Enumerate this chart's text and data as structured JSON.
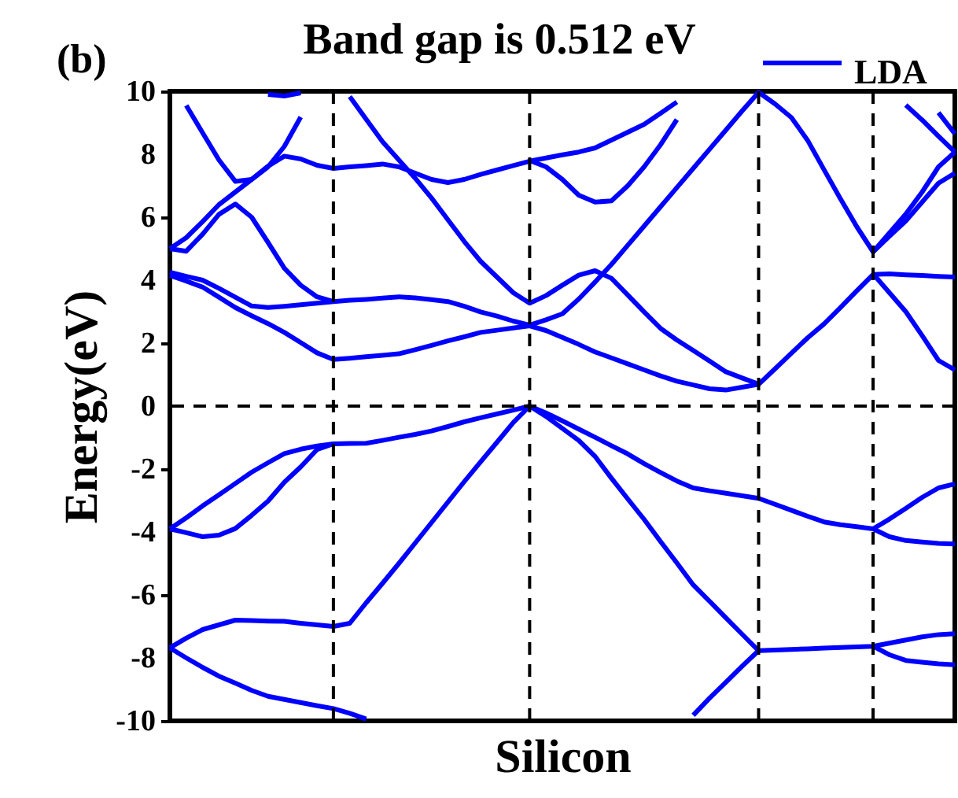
{
  "chart_data": {
    "type": "line",
    "title": "Band gap is 0.512 eV",
    "xlabel": "Silicon",
    "ylabel": "Energy(eV)",
    "annotations": [
      "(b)"
    ],
    "categories": [
      null,
      null,
      null,
      null,
      null,
      null,
      null,
      null,
      null,
      null,
      null,
      null,
      null,
      null,
      null,
      null,
      null,
      null,
      null,
      null,
      null,
      null,
      null,
      null,
      null,
      null,
      null,
      null,
      null,
      null,
      null,
      null,
      null,
      null,
      null,
      null,
      null,
      null,
      null,
      null,
      null,
      null,
      null,
      null,
      null,
      null,
      null,
      null,
      null
    ],
    "ylim": [
      -10,
      10
    ],
    "yticks": [
      -10,
      -8,
      -6,
      -4,
      -2,
      0,
      2,
      4,
      6,
      8,
      10
    ],
    "tick_labels": "y",
    "grid": "x",
    "legend": "top right",
    "line_style": "solid",
    "ref_lines": [
      {
        "axis": "y",
        "value": 0,
        "color": "#000000",
        "line_style": "dashed"
      }
    ],
    "series": [
      {
        "name": "LDA",
        "color": "#0000ff",
        "values": [
          -3.9,
          -3.55,
          -3.17,
          -2.82,
          -2.46,
          -2.1,
          -1.8,
          -1.51,
          -1.37,
          -1.27,
          -1.2,
          -1.19,
          -1.18,
          -1.09,
          -0.99,
          -0.9,
          -0.79,
          -0.65,
          -0.5,
          -0.37,
          -0.25,
          -0.13,
          0,
          -0.22,
          -0.47,
          -0.73,
          -0.99,
          -1.26,
          -1.52,
          -1.83,
          -2.11,
          -2.38,
          -2.6,
          -2.69,
          -2.77,
          -2.85,
          -2.93,
          -3.12,
          -3.31,
          -3.5,
          -3.68,
          -3.77,
          -3.83,
          -3.9,
          -3.59,
          -3.25,
          -2.9,
          -2.6,
          -2.47
        ]
      },
      {
        "color": "#0000ff",
        "values": [
          -3.9,
          -4.02,
          -4.15,
          -4.1,
          -3.89,
          -3.47,
          -3.02,
          -2.42,
          -1.93,
          -1.38,
          -1.2,
          null,
          null,
          null,
          null,
          null,
          null,
          null,
          null,
          null,
          null,
          null,
          null,
          null,
          null,
          null,
          null,
          null,
          null,
          null,
          null,
          null,
          null,
          null,
          null,
          null,
          null,
          null,
          null,
          null,
          null,
          null,
          null,
          null,
          null,
          null,
          null,
          null,
          null
        ]
      },
      {
        "color": "#0000ff",
        "values": [
          null,
          null,
          null,
          null,
          null,
          null,
          null,
          null,
          null,
          null,
          null,
          null,
          null,
          null,
          null,
          null,
          null,
          null,
          null,
          null,
          null,
          null,
          null,
          null,
          null,
          null,
          null,
          null,
          null,
          null,
          null,
          null,
          null,
          null,
          null,
          null,
          null,
          null,
          null,
          null,
          null,
          null,
          null,
          -3.9,
          -4.15,
          -4.27,
          -4.32,
          -4.36,
          -4.38
        ]
      },
      {
        "color": "#0000ff",
        "values": [
          -7.68,
          -7.37,
          -7.1,
          -6.95,
          -6.8,
          -6.81,
          -6.83,
          -6.84,
          -6.9,
          -6.95,
          -7.0,
          -6.9,
          -6.25,
          -5.63,
          -5.0,
          -4.35,
          -3.7,
          -3.05,
          -2.4,
          -1.77,
          -1.15,
          -0.52,
          0,
          -0.33,
          -0.71,
          -1.09,
          -1.6,
          -2.29,
          -2.95,
          -3.6,
          -4.3,
          -4.98,
          -5.68,
          -6.2,
          -6.73,
          -7.25,
          -7.77,
          -7.75,
          -7.73,
          -7.71,
          -7.69,
          -7.67,
          -7.65,
          -7.63,
          -7.53,
          -7.43,
          -7.33,
          -7.26,
          -7.23
        ]
      },
      {
        "color": "#0000ff",
        "values": [
          null,
          null,
          null,
          null,
          null,
          null,
          null,
          null,
          null,
          null,
          null,
          null,
          null,
          null,
          null,
          null,
          null,
          null,
          null,
          null,
          null,
          null,
          null,
          null,
          null,
          null,
          null,
          null,
          null,
          null,
          null,
          null,
          null,
          null,
          null,
          null,
          null,
          null,
          null,
          null,
          null,
          null,
          null,
          -7.63,
          -7.9,
          -8.08,
          -8.14,
          -8.19,
          -8.22
        ]
      },
      {
        "color": "#0000ff",
        "values": [
          null,
          null,
          null,
          null,
          null,
          null,
          null,
          null,
          null,
          null,
          null,
          null,
          null,
          null,
          null,
          null,
          null,
          null,
          null,
          null,
          null,
          null,
          null,
          null,
          null,
          null,
          null,
          null,
          null,
          null,
          null,
          null,
          -9.82,
          -9.28,
          -8.77,
          -8.26,
          -7.77,
          null,
          null,
          null,
          null,
          null,
          null,
          null,
          null,
          null,
          null,
          null,
          null
        ]
      },
      {
        "color": "#0000ff",
        "values": [
          -7.68,
          -8.0,
          -8.3,
          -8.58,
          -8.8,
          -9.03,
          -9.22,
          -9.32,
          -9.42,
          -9.52,
          -9.61,
          -9.76,
          -9.94,
          null,
          null,
          null,
          null,
          null,
          null,
          null,
          null,
          null,
          null,
          null,
          null,
          null,
          null,
          null,
          null,
          null,
          null,
          null,
          null,
          null,
          null,
          null,
          null,
          null,
          null,
          null,
          null,
          null,
          null,
          null,
          null,
          null,
          null,
          null,
          null
        ]
      },
      {
        "color": "#0000ff",
        "values": [
          4.15,
          3.97,
          3.78,
          3.46,
          3.13,
          2.87,
          2.62,
          2.34,
          2.02,
          1.69,
          1.48,
          1.52,
          1.57,
          1.61,
          1.66,
          1.79,
          1.93,
          2.07,
          2.2,
          2.34,
          2.41,
          2.48,
          2.55,
          2.4,
          2.18,
          1.96,
          1.72,
          1.53,
          1.34,
          1.15,
          0.96,
          0.79,
          0.67,
          0.55,
          0.51,
          0.6,
          0.69,
          1.18,
          1.68,
          2.17,
          2.61,
          3.13,
          3.66,
          4.18,
          4.2,
          4.17,
          4.15,
          4.12,
          4.1
        ]
      },
      {
        "color": "#0000ff",
        "values": [
          null,
          null,
          null,
          null,
          null,
          null,
          null,
          null,
          null,
          null,
          null,
          null,
          null,
          null,
          null,
          null,
          null,
          null,
          null,
          null,
          null,
          null,
          null,
          null,
          null,
          null,
          null,
          null,
          null,
          null,
          null,
          null,
          null,
          null,
          null,
          null,
          null,
          null,
          null,
          null,
          null,
          null,
          null,
          4.2,
          3.6,
          3.0,
          2.24,
          1.45,
          1.15
        ]
      },
      {
        "color": "#0000ff",
        "values": [
          4.25,
          4.12,
          4.0,
          3.74,
          3.46,
          3.18,
          3.13,
          3.17,
          3.22,
          3.27,
          3.32,
          3.36,
          3.39,
          3.43,
          3.47,
          3.44,
          3.38,
          3.32,
          3.17,
          2.99,
          2.86,
          2.7,
          2.57,
          2.74,
          2.93,
          3.4,
          3.94,
          4.5,
          5.11,
          5.72,
          6.33,
          6.94,
          7.55,
          8.16,
          8.77,
          9.38,
          9.97,
          9.6,
          9.17,
          8.44,
          7.51,
          6.59,
          5.7,
          4.9,
          5.4,
          5.88,
          6.48,
          7.08,
          7.4
        ]
      },
      {
        "color": "#0000ff",
        "values": [
          null,
          null,
          null,
          null,
          null,
          null,
          null,
          null,
          null,
          null,
          null,
          9.83,
          9.11,
          8.4,
          7.82,
          7.24,
          6.61,
          5.92,
          5.23,
          4.6,
          4.1,
          3.6,
          3.27,
          3.51,
          3.84,
          4.16,
          4.3,
          4.06,
          3.53,
          2.99,
          2.47,
          2.1,
          1.77,
          1.43,
          1.09,
          0.89,
          0.7,
          null,
          null,
          null,
          null,
          null,
          null,
          null,
          null,
          null,
          null,
          null,
          null
        ]
      },
      {
        "color": "#0000ff",
        "values": [
          null,
          null,
          null,
          null,
          null,
          null,
          null,
          null,
          null,
          null,
          null,
          null,
          null,
          null,
          null,
          null,
          null,
          null,
          null,
          null,
          null,
          null,
          null,
          null,
          null,
          null,
          null,
          null,
          null,
          null,
          null,
          null,
          null,
          null,
          null,
          null,
          null,
          null,
          null,
          null,
          null,
          null,
          null,
          4.9,
          5.5,
          6.1,
          6.8,
          7.6,
          8.07
        ]
      },
      {
        "color": "#0000ff",
        "values": [
          null,
          null,
          null,
          null,
          null,
          null,
          null,
          null,
          null,
          null,
          null,
          null,
          null,
          null,
          null,
          null,
          null,
          null,
          null,
          null,
          null,
          null,
          null,
          null,
          null,
          null,
          null,
          null,
          null,
          null,
          null,
          null,
          null,
          null,
          null,
          null,
          null,
          null,
          null,
          null,
          null,
          null,
          null,
          null,
          null,
          9.56,
          9.09,
          8.57,
          8.07
        ]
      },
      {
        "color": "#0000ff",
        "values": [
          null,
          null,
          null,
          null,
          null,
          null,
          null,
          null,
          null,
          null,
          null,
          null,
          null,
          null,
          null,
          null,
          null,
          null,
          null,
          null,
          null,
          null,
          null,
          null,
          null,
          null,
          null,
          null,
          null,
          null,
          null,
          null,
          null,
          null,
          null,
          null,
          null,
          null,
          null,
          null,
          null,
          null,
          null,
          null,
          null,
          null,
          null,
          9.32,
          8.65
        ]
      },
      {
        "color": "#0000ff",
        "values": [
          5.0,
          4.92,
          5.46,
          6.09,
          6.42,
          6.0,
          5.2,
          4.38,
          3.84,
          3.47,
          3.32,
          null,
          null,
          null,
          null,
          null,
          null,
          null,
          null,
          null,
          null,
          null,
          null,
          null,
          null,
          null,
          null,
          null,
          null,
          null,
          null,
          null,
          null,
          null,
          null,
          null,
          null,
          null,
          null,
          null,
          null,
          null,
          null,
          null,
          null,
          null,
          null,
          null,
          null
        ]
      },
      {
        "color": "#0000ff",
        "values": [
          5.0,
          5.35,
          5.86,
          6.4,
          6.8,
          7.2,
          7.6,
          8.25,
          9.18,
          null,
          null,
          null,
          null,
          null,
          null,
          null,
          null,
          null,
          null,
          null,
          null,
          null,
          null,
          null,
          null,
          null,
          null,
          null,
          null,
          null,
          null,
          null,
          null,
          null,
          null,
          null,
          null,
          null,
          null,
          null,
          null,
          null,
          null,
          null,
          null,
          null,
          null,
          null,
          null
        ]
      },
      {
        "color": "#0000ff",
        "values": [
          null,
          9.55,
          8.68,
          7.82,
          7.14,
          7.2,
          7.62,
          7.94,
          7.85,
          7.65,
          7.55,
          7.6,
          7.64,
          7.69,
          7.6,
          7.4,
          7.2,
          7.1,
          7.2,
          7.36,
          7.5,
          7.64,
          7.78,
          7.88,
          7.98,
          8.07,
          8.2,
          8.45,
          8.7,
          8.95,
          9.3,
          9.66,
          null,
          null,
          null,
          null,
          null,
          null,
          null,
          null,
          null,
          null,
          null,
          null,
          null,
          null,
          null,
          null,
          null
        ]
      },
      {
        "color": "#0000ff",
        "values": [
          null,
          null,
          null,
          null,
          null,
          null,
          null,
          null,
          null,
          null,
          null,
          null,
          null,
          null,
          null,
          null,
          null,
          null,
          null,
          null,
          null,
          null,
          7.8,
          7.6,
          7.2,
          6.7,
          6.48,
          6.52,
          7.0,
          7.6,
          8.3,
          9.1,
          null,
          null,
          null,
          null,
          null,
          null,
          null,
          null,
          null,
          null,
          null,
          null,
          null,
          null,
          null,
          null,
          null
        ]
      },
      {
        "color": "#0000ff",
        "values": [
          null,
          null,
          null,
          null,
          null,
          null,
          9.9,
          9.85,
          9.95,
          null,
          null,
          null,
          null,
          null,
          null,
          null,
          null,
          null,
          null,
          null,
          null,
          null,
          null,
          null,
          null,
          null,
          null,
          null,
          null,
          null,
          null,
          null,
          null,
          null,
          null,
          null,
          null,
          null,
          null,
          null,
          null,
          null,
          null,
          null,
          null,
          null,
          null,
          null,
          null
        ]
      }
    ]
  }
}
